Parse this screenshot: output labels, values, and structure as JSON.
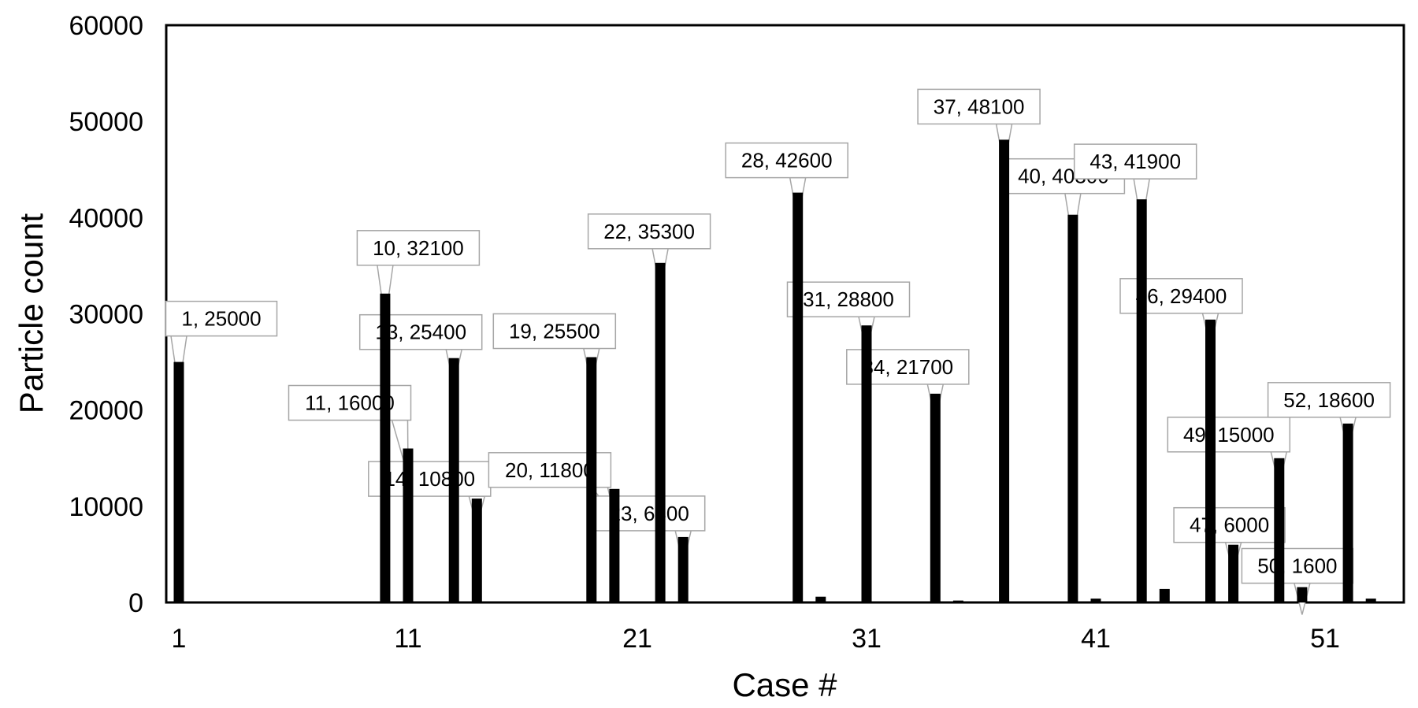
{
  "chart_data": {
    "type": "bar",
    "xlabel": "Case #",
    "ylabel": "Particle count",
    "xlim": [
      1,
      54
    ],
    "ylim": [
      0,
      60000
    ],
    "x_ticks": [
      1,
      11,
      21,
      31,
      41,
      51
    ],
    "y_ticks": [
      0,
      10000,
      20000,
      30000,
      40000,
      50000,
      60000
    ],
    "grid": false,
    "bar_color": "#000000",
    "callout_border_color": "#a6a6a6",
    "x": [
      1,
      10,
      11,
      13,
      14,
      19,
      20,
      22,
      23,
      28,
      29,
      31,
      34,
      35,
      37,
      40,
      41,
      43,
      44,
      46,
      47,
      49,
      50,
      52,
      53
    ],
    "values": [
      25000,
      32100,
      16000,
      25400,
      10800,
      25500,
      11800,
      35300,
      6800,
      42600,
      600,
      28800,
      21700,
      200,
      48100,
      40300,
      400,
      41900,
      1400,
      29400,
      6000,
      15000,
      1600,
      18600,
      400
    ],
    "data_labels": [
      {
        "case": 1,
        "text": "1, 25000"
      },
      {
        "case": 10,
        "text": "10, 32100"
      },
      {
        "case": 11,
        "text": "11, 16000"
      },
      {
        "case": 13,
        "text": "13, 25400"
      },
      {
        "case": 14,
        "text": "14, 10800"
      },
      {
        "case": 19,
        "text": "19, 25500"
      },
      {
        "case": 20,
        "text": "20, 11800"
      },
      {
        "case": 22,
        "text": "22, 35300"
      },
      {
        "case": 23,
        "text": "23, 6800"
      },
      {
        "case": 28,
        "text": "28, 42600"
      },
      {
        "case": 31,
        "text": "31, 28800"
      },
      {
        "case": 34,
        "text": "34, 21700"
      },
      {
        "case": 37,
        "text": "37, 48100"
      },
      {
        "case": 40,
        "text": "40, 40300"
      },
      {
        "case": 43,
        "text": "43, 41900"
      },
      {
        "case": 46,
        "text": "46, 29400"
      },
      {
        "case": 47,
        "text": "47, 6000"
      },
      {
        "case": 49,
        "text": "49, 15000"
      },
      {
        "case": 50,
        "text": "50, 1600"
      },
      {
        "case": 52,
        "text": "52, 18600"
      }
    ]
  }
}
